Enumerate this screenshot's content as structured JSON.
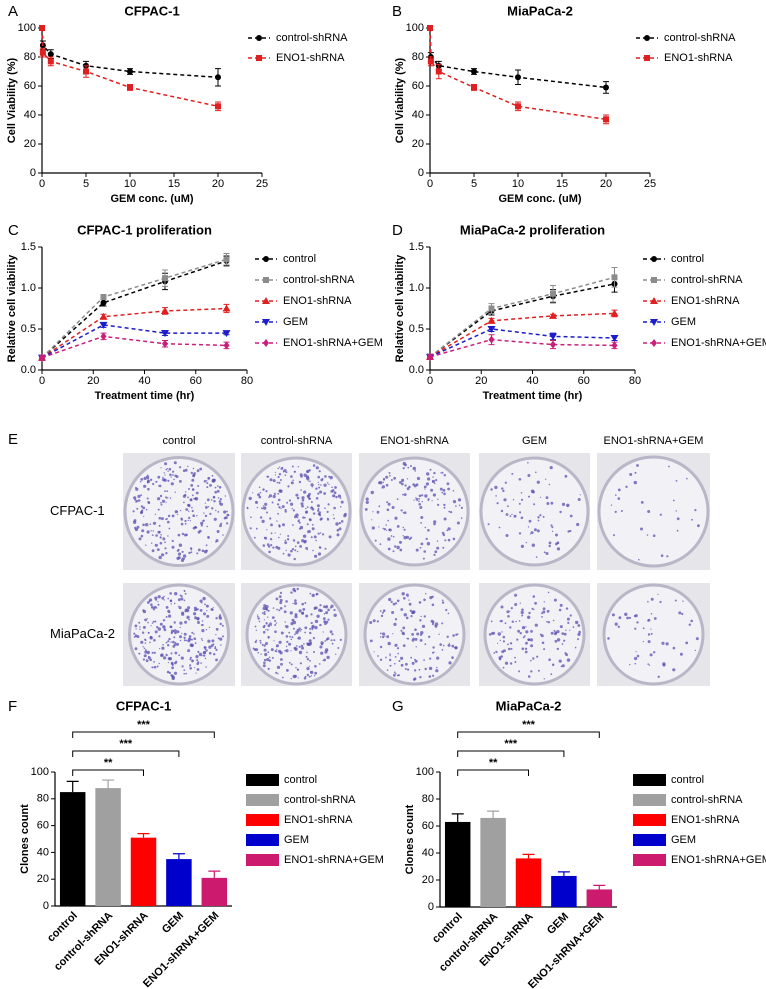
{
  "chart_data": [
    {
      "type": "line",
      "panel_label": "A",
      "title": "CFPAC-1",
      "x_label": "GEM conc. (uM)",
      "y_label": "Cell Viability (%)",
      "x": [
        0,
        0.1,
        1,
        5,
        10,
        20
      ],
      "xlim": [
        0,
        25
      ],
      "xticks": [
        0,
        5,
        10,
        15,
        20,
        25
      ],
      "ylim": [
        0,
        100
      ],
      "yticks": [
        0,
        20,
        40,
        60,
        80,
        100
      ],
      "legend": "outside right",
      "series": [
        {
          "name": "control-shRNA",
          "color": "#000000",
          "marker": "circle",
          "linestyle": "dashed",
          "values": [
            100,
            88,
            82,
            74,
            70,
            66
          ],
          "errors": [
            1,
            3,
            3,
            3,
            2,
            6
          ]
        },
        {
          "name": "ENO1-shRNA",
          "color": "#e02020",
          "marker": "square",
          "linestyle": "dashed",
          "values": [
            100,
            83,
            77,
            70,
            59,
            46
          ],
          "errors": [
            1,
            3,
            3,
            4,
            2,
            3
          ]
        }
      ]
    },
    {
      "type": "line",
      "panel_label": "B",
      "title": "MiaPaCa-2",
      "x_label": "GEM conc. (uM)",
      "y_label": "Cell Viability (%)",
      "x": [
        0,
        0.1,
        1,
        5,
        10,
        20
      ],
      "xlim": [
        0,
        25
      ],
      "xticks": [
        0,
        5,
        10,
        15,
        20,
        25
      ],
      "ylim": [
        0,
        100
      ],
      "yticks": [
        0,
        20,
        40,
        60,
        80,
        100
      ],
      "legend": "outside right",
      "series": [
        {
          "name": "control-shRNA",
          "color": "#000000",
          "marker": "circle",
          "linestyle": "dashed",
          "values": [
            100,
            80,
            74,
            70,
            66,
            59
          ],
          "errors": [
            1,
            3,
            3,
            2,
            5,
            4
          ]
        },
        {
          "name": "ENO1-shRNA",
          "color": "#e02020",
          "marker": "square",
          "linestyle": "dashed",
          "values": [
            100,
            77,
            70,
            59,
            46,
            37
          ],
          "errors": [
            1,
            3,
            5,
            2,
            3,
            3
          ]
        }
      ]
    },
    {
      "type": "line",
      "panel_label": "C",
      "title": "CFPAC-1 proliferation",
      "x_label": "Treatment time (hr)",
      "y_label": "Relative cell viability",
      "x": [
        0,
        24,
        48,
        72
      ],
      "xlim": [
        0,
        80
      ],
      "xticks": [
        0,
        20,
        40,
        60,
        80
      ],
      "ylim": [
        0,
        1.5
      ],
      "yticks": [
        {
          "value": 0,
          "label": "0.0"
        },
        0.5,
        {
          "value": 1,
          "label": "1.0"
        },
        1.5
      ],
      "legend": "outside right",
      "series": [
        {
          "name": "control",
          "color": "#000000",
          "marker": "circle",
          "linestyle": "dashed",
          "values": [
            0.15,
            0.82,
            1.08,
            1.33
          ],
          "errors": [
            0.03,
            0.04,
            0.1,
            0.06
          ]
        },
        {
          "name": "control-shRNA",
          "color": "#8c8c8c",
          "marker": "square",
          "linestyle": "dashed",
          "values": [
            0.15,
            0.89,
            1.12,
            1.35
          ],
          "errors": [
            0.03,
            0.03,
            0.1,
            0.07
          ]
        },
        {
          "name": "ENO1-shRNA",
          "color": "#e02020",
          "marker": "triangle-up",
          "linestyle": "dashed",
          "values": [
            0.15,
            0.65,
            0.72,
            0.75
          ],
          "errors": [
            0.03,
            0.03,
            0.04,
            0.05
          ]
        },
        {
          "name": "GEM",
          "color": "#1c1cc8",
          "marker": "triangle-down",
          "linestyle": "dashed",
          "values": [
            0.15,
            0.55,
            0.45,
            0.45
          ],
          "errors": [
            0.03,
            0.03,
            0.03,
            0.02
          ]
        },
        {
          "name": "ENO1-shRNA+GEM",
          "color": "#c8207a",
          "marker": "diamond",
          "linestyle": "dashed",
          "values": [
            0.15,
            0.41,
            0.32,
            0.3
          ],
          "errors": [
            0.03,
            0.04,
            0.04,
            0.04
          ]
        }
      ]
    },
    {
      "type": "line",
      "panel_label": "D",
      "title": "MiaPaCa-2 proliferation",
      "x_label": "Treatment time (hr)",
      "y_label": "Relative cell viability",
      "x": [
        0,
        24,
        48,
        72
      ],
      "xlim": [
        0,
        80
      ],
      "xticks": [
        0,
        20,
        40,
        60,
        80
      ],
      "ylim": [
        0,
        1.5
      ],
      "yticks": [
        {
          "value": 0,
          "label": "0.0"
        },
        0.5,
        {
          "value": 1,
          "label": "1.0"
        },
        1.5
      ],
      "legend": "outside right",
      "series": [
        {
          "name": "control",
          "color": "#000000",
          "marker": "circle",
          "linestyle": "dashed",
          "values": [
            0.16,
            0.72,
            0.9,
            1.05
          ],
          "errors": [
            0.03,
            0.05,
            0.08,
            0.1
          ]
        },
        {
          "name": "control-shRNA",
          "color": "#8c8c8c",
          "marker": "square",
          "linestyle": "dashed",
          "values": [
            0.16,
            0.75,
            0.93,
            1.13
          ],
          "errors": [
            0.03,
            0.06,
            0.1,
            0.12
          ]
        },
        {
          "name": "ENO1-shRNA",
          "color": "#e02020",
          "marker": "triangle-up",
          "linestyle": "dashed",
          "values": [
            0.16,
            0.6,
            0.66,
            0.69
          ],
          "errors": [
            0.03,
            0.03,
            0.02,
            0.04
          ]
        },
        {
          "name": "GEM",
          "color": "#1c1cc8",
          "marker": "triangle-down",
          "linestyle": "dashed",
          "values": [
            0.16,
            0.5,
            0.41,
            0.39
          ],
          "errors": [
            0.03,
            0.03,
            0.04,
            0.03
          ]
        },
        {
          "name": "ENO1-shRNA+GEM",
          "color": "#c8207a",
          "marker": "diamond",
          "linestyle": "dashed",
          "values": [
            0.16,
            0.37,
            0.31,
            0.3
          ],
          "errors": [
            0.03,
            0.06,
            0.05,
            0.04
          ]
        }
      ]
    },
    {
      "type": "bar",
      "panel_label": "F",
      "title": "CFPAC-1",
      "y_label": "Clones count",
      "categories": [
        "control",
        "control-shRNA",
        "ENO1-shRNA",
        "GEM",
        "ENO1-shRNA+GEM"
      ],
      "values": [
        85,
        88,
        51,
        35,
        21
      ],
      "errors": [
        8,
        6,
        3,
        4,
        5
      ],
      "colors": [
        "#000000",
        "#a0a0a0",
        "#ff0000",
        "#0000cc",
        "#cc1a6e"
      ],
      "ylim": [
        0,
        100
      ],
      "yticks": [
        0,
        20,
        40,
        60,
        80,
        100
      ],
      "legend": "outside right",
      "significance": [
        {
          "label": "**",
          "between": [
            "control",
            "ENO1-shRNA"
          ]
        },
        {
          "label": "***",
          "between": [
            "control",
            "GEM"
          ]
        },
        {
          "label": "***",
          "between": [
            "control",
            "ENO1-shRNA+GEM"
          ]
        }
      ]
    },
    {
      "type": "bar",
      "panel_label": "G",
      "title": "MiaPaCa-2",
      "y_label": "Clones count",
      "categories": [
        "control",
        "control-shRNA",
        "ENO1-shRNA",
        "GEM",
        "ENO1-shRNA+GEM"
      ],
      "values": [
        63,
        66,
        36,
        23,
        13
      ],
      "errors": [
        6,
        5,
        3,
        3,
        3
      ],
      "colors": [
        "#000000",
        "#a0a0a0",
        "#ff0000",
        "#0000cc",
        "#cc1a6e"
      ],
      "ylim": [
        0,
        100
      ],
      "yticks": [
        0,
        20,
        40,
        60,
        80,
        100
      ],
      "legend": "outside right",
      "significance": [
        {
          "label": "**",
          "between": [
            "control",
            "ENO1-shRNA"
          ]
        },
        {
          "label": "***",
          "between": [
            "control",
            "GEM"
          ]
        },
        {
          "label": "***",
          "between": [
            "control",
            "ENO1-shRNA+GEM"
          ]
        }
      ]
    }
  ],
  "colony_assay": {
    "panel_label": "E",
    "columns": [
      "control",
      "control-shRNA",
      "ENO1-shRNA",
      "GEM",
      "ENO1-shRNA+GEM"
    ],
    "rows": [
      "CFPAC-1",
      "MiaPaCa-2"
    ]
  }
}
